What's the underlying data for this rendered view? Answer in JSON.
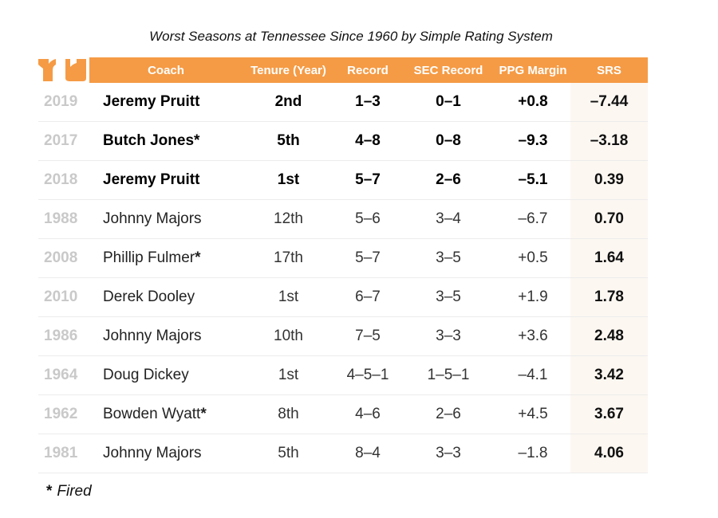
{
  "title": "Worst Seasons at Tennessee Since 1960 by Simple Rating System",
  "colors": {
    "header": "#f59b45",
    "srs_column": "#fcf7f1",
    "year_text": "#c9c9c9"
  },
  "icons": {
    "logo": "tennessee-power-t-logo"
  },
  "footnote": {
    "marker": "*",
    "text": "Fired"
  },
  "chart_data": {
    "type": "table",
    "columns": [
      "",
      "Coach",
      "Tenure (Year)",
      "Record",
      "SEC Record",
      "PPG Margin",
      "SRS"
    ],
    "rows": [
      {
        "year": "2019",
        "coach": "Jeremy Pruitt",
        "fired": "",
        "tenure": "2nd",
        "record": "1–3",
        "sec": "0–1",
        "ppg": "+0.8",
        "srs": "–7.44",
        "bold": true
      },
      {
        "year": "2017",
        "coach": "Butch Jones",
        "fired": "*",
        "tenure": "5th",
        "record": "4–8",
        "sec": "0–8",
        "ppg": "–9.3",
        "srs": "–3.18",
        "bold": true
      },
      {
        "year": "2018",
        "coach": "Jeremy Pruitt",
        "fired": "",
        "tenure": "1st",
        "record": "5–7",
        "sec": "2–6",
        "ppg": "–5.1",
        "srs": "0.39",
        "bold": true
      },
      {
        "year": "1988",
        "coach": "Johnny Majors",
        "fired": "",
        "tenure": "12th",
        "record": "5–6",
        "sec": "3–4",
        "ppg": "–6.7",
        "srs": "0.70",
        "bold": false
      },
      {
        "year": "2008",
        "coach": "Phillip Fulmer",
        "fired": "*",
        "tenure": "17th",
        "record": "5–7",
        "sec": "3–5",
        "ppg": "+0.5",
        "srs": "1.64",
        "bold": false
      },
      {
        "year": "2010",
        "coach": "Derek Dooley",
        "fired": "",
        "tenure": "1st",
        "record": "6–7",
        "sec": "3–5",
        "ppg": "+1.9",
        "srs": "1.78",
        "bold": false
      },
      {
        "year": "1986",
        "coach": "Johnny Majors",
        "fired": "",
        "tenure": "10th",
        "record": "7–5",
        "sec": "3–3",
        "ppg": "+3.6",
        "srs": "2.48",
        "bold": false
      },
      {
        "year": "1964",
        "coach": "Doug Dickey",
        "fired": "",
        "tenure": "1st",
        "record": "4–5–1",
        "sec": "1–5–1",
        "ppg": "–4.1",
        "srs": "3.42",
        "bold": false
      },
      {
        "year": "1962",
        "coach": "Bowden Wyatt",
        "fired": "*",
        "tenure": "8th",
        "record": "4–6",
        "sec": "2–6",
        "ppg": "+4.5",
        "srs": "3.67",
        "bold": false
      },
      {
        "year": "1981",
        "coach": "Johnny Majors",
        "fired": "",
        "tenure": "5th",
        "record": "8–4",
        "sec": "3–3",
        "ppg": "–1.8",
        "srs": "4.06",
        "bold": false
      }
    ]
  }
}
